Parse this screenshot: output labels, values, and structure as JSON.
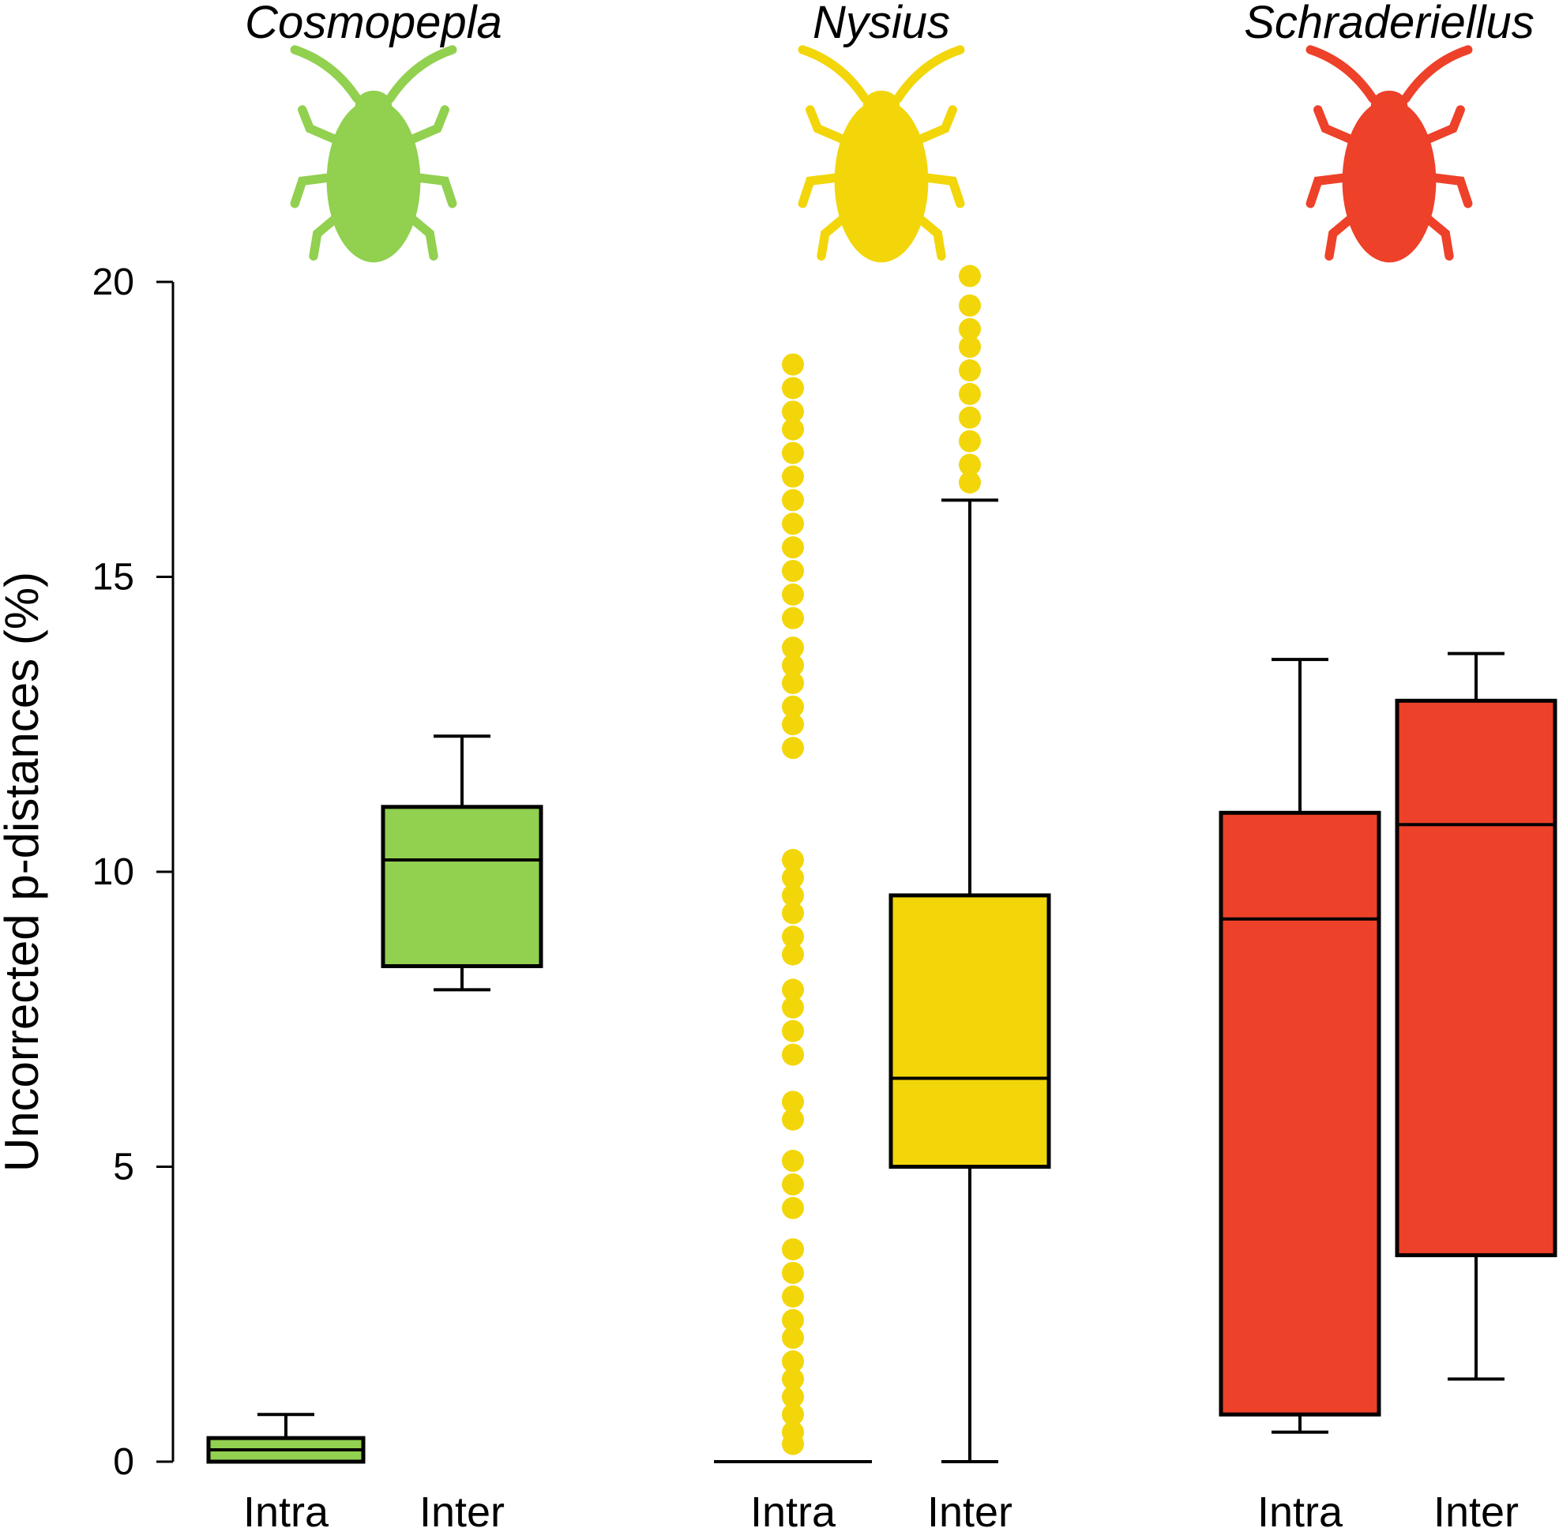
{
  "chart_data": {
    "type": "box",
    "ylabel": "Uncorrected p-distances (%)",
    "ylim": [
      0,
      20
    ],
    "yticks": [
      0,
      5,
      10,
      15,
      20
    ],
    "grid": false,
    "legend": "none",
    "groups": [
      {
        "name": "Cosmopepla",
        "color": "#92d050",
        "icon": "bug-silhouette-icon",
        "boxes": [
          {
            "label": "Intra",
            "min": 0.0,
            "q1": 0.0,
            "median": 0.2,
            "q3": 0.4,
            "max": 0.8,
            "outliers": []
          },
          {
            "label": "Inter",
            "min": 8.0,
            "q1": 8.4,
            "median": 10.2,
            "q3": 11.1,
            "max": 12.3,
            "outliers": []
          }
        ]
      },
      {
        "name": "Nysius",
        "color": "#f2d60a",
        "icon": "bug-silhouette-icon",
        "boxes": [
          {
            "label": "Intra",
            "min": 0.0,
            "q1": 0.0,
            "median": 0.0,
            "q3": 0.0,
            "max": 0.0,
            "outliers": [
              0.3,
              0.5,
              0.8,
              1.1,
              1.4,
              1.7,
              2.1,
              2.4,
              2.8,
              3.2,
              3.6,
              4.3,
              4.7,
              5.1,
              5.8,
              6.1,
              6.9,
              7.3,
              7.7,
              8.0,
              8.6,
              8.9,
              9.3,
              9.6,
              9.9,
              10.2,
              12.1,
              12.5,
              12.8,
              13.2,
              13.5,
              13.8,
              14.3,
              14.7,
              15.1,
              15.5,
              15.9,
              16.3,
              16.7,
              17.1,
              17.5,
              17.8,
              18.2,
              18.6
            ]
          },
          {
            "label": "Inter",
            "min": 0.0,
            "q1": 5.0,
            "median": 6.5,
            "q3": 9.6,
            "max": 16.3,
            "outliers": [
              16.6,
              16.9,
              17.3,
              17.7,
              18.1,
              18.5,
              18.9,
              19.2,
              19.6,
              20.1
            ]
          }
        ]
      },
      {
        "name": "Schraderiellus",
        "color": "#ee4129",
        "icon": "bug-silhouette-icon",
        "boxes": [
          {
            "label": "Intra",
            "min": 0.5,
            "q1": 0.8,
            "median": 9.2,
            "q3": 11.0,
            "max": 13.6,
            "outliers": []
          },
          {
            "label": "Inter",
            "min": 1.4,
            "q1": 3.5,
            "median": 10.8,
            "q3": 12.9,
            "max": 13.7,
            "outliers": []
          }
        ]
      }
    ]
  }
}
